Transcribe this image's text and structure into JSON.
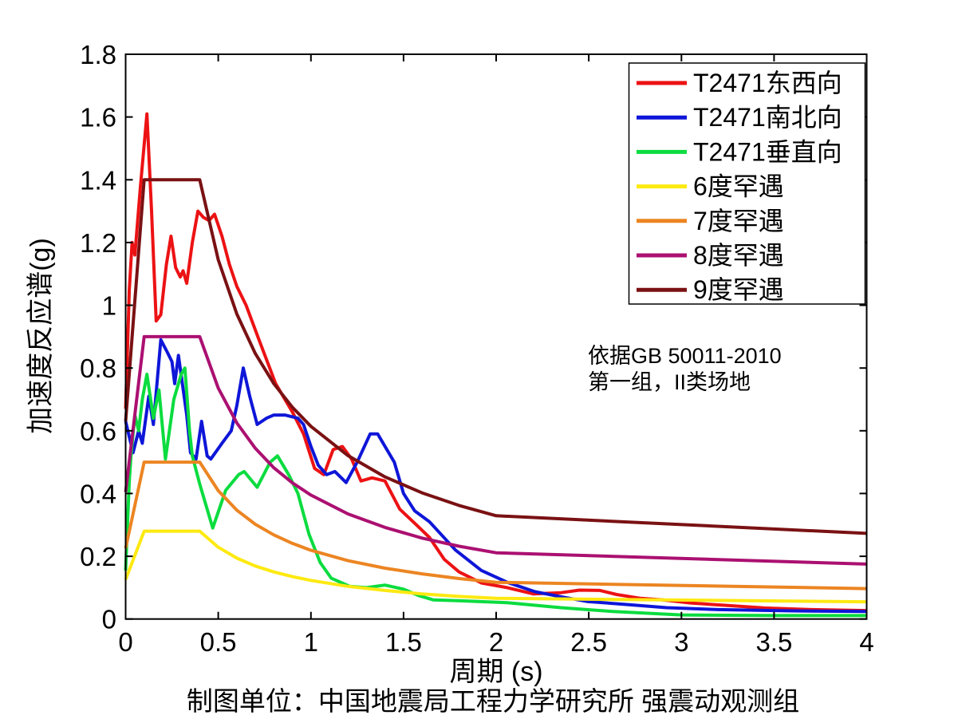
{
  "figure": {
    "background": "#ffffff",
    "caption": "制图单位：中国地震局工程力学研究所 强震动观测组",
    "annotation": {
      "line1": "依据GB 50011-2010",
      "line2": "第一组，II类场地"
    }
  },
  "chart_data": {
    "type": "line",
    "title": "",
    "xlabel": "周期 (s)",
    "ylabel": "加速度反应谱(g)",
    "xlim": [
      0,
      4
    ],
    "ylim": [
      0,
      1.8
    ],
    "grid": false,
    "legend_position": "top-right",
    "xticks": [
      0,
      0.5,
      1,
      1.5,
      2,
      2.5,
      3,
      3.5,
      4
    ],
    "xtick_labels": [
      "0",
      "0.5",
      "1",
      "1.5",
      "2",
      "2.5",
      "3",
      "3.5",
      "4"
    ],
    "yticks": [
      0,
      0.2,
      0.4,
      0.6,
      0.8,
      1,
      1.2,
      1.4,
      1.6,
      1.8
    ],
    "ytick_labels": [
      "0",
      "0.2",
      "0.4",
      "0.6",
      "0.8",
      "1",
      "1.2",
      "1.4",
      "1.6",
      "1.8"
    ],
    "axis_color": "#000000",
    "series": [
      {
        "name": "T2471东西向",
        "color": "#EC1214",
        "points": [
          [
            0,
            0.67
          ],
          [
            0.02,
            1.05
          ],
          [
            0.035,
            1.2
          ],
          [
            0.05,
            1.16
          ],
          [
            0.08,
            1.38
          ],
          [
            0.115,
            1.61
          ],
          [
            0.14,
            1.3
          ],
          [
            0.165,
            0.95
          ],
          [
            0.19,
            0.97
          ],
          [
            0.22,
            1.13
          ],
          [
            0.245,
            1.22
          ],
          [
            0.27,
            1.12
          ],
          [
            0.295,
            1.09
          ],
          [
            0.31,
            1.11
          ],
          [
            0.33,
            1.07
          ],
          [
            0.36,
            1.2
          ],
          [
            0.39,
            1.3
          ],
          [
            0.42,
            1.28
          ],
          [
            0.45,
            1.27
          ],
          [
            0.48,
            1.29
          ],
          [
            0.52,
            1.22
          ],
          [
            0.56,
            1.13
          ],
          [
            0.6,
            1.06
          ],
          [
            0.65,
            1.0
          ],
          [
            0.72,
            0.89
          ],
          [
            0.81,
            0.75
          ],
          [
            0.9,
            0.66
          ],
          [
            0.96,
            0.59
          ],
          [
            1.02,
            0.48
          ],
          [
            1.07,
            0.46
          ],
          [
            1.12,
            0.54
          ],
          [
            1.17,
            0.55
          ],
          [
            1.22,
            0.51
          ],
          [
            1.27,
            0.44
          ],
          [
            1.33,
            0.45
          ],
          [
            1.4,
            0.44
          ],
          [
            1.48,
            0.35
          ],
          [
            1.57,
            0.3
          ],
          [
            1.64,
            0.26
          ],
          [
            1.72,
            0.19
          ],
          [
            1.8,
            0.15
          ],
          [
            1.92,
            0.115
          ],
          [
            2.06,
            0.1
          ],
          [
            2.2,
            0.08
          ],
          [
            2.35,
            0.084
          ],
          [
            2.45,
            0.092
          ],
          [
            2.56,
            0.091
          ],
          [
            2.65,
            0.078
          ],
          [
            2.78,
            0.066
          ],
          [
            2.9,
            0.061
          ],
          [
            3.05,
            0.051
          ],
          [
            3.25,
            0.043
          ],
          [
            3.45,
            0.035
          ],
          [
            3.7,
            0.03
          ],
          [
            4.0,
            0.027
          ]
        ]
      },
      {
        "name": "T2471南北向",
        "color": "#0E16D8",
        "points": [
          [
            0,
            0.63
          ],
          [
            0.04,
            0.53
          ],
          [
            0.07,
            0.6
          ],
          [
            0.09,
            0.56
          ],
          [
            0.125,
            0.71
          ],
          [
            0.15,
            0.62
          ],
          [
            0.19,
            0.89
          ],
          [
            0.225,
            0.85
          ],
          [
            0.25,
            0.82
          ],
          [
            0.265,
            0.75
          ],
          [
            0.285,
            0.84
          ],
          [
            0.33,
            0.65
          ],
          [
            0.35,
            0.53
          ],
          [
            0.38,
            0.51
          ],
          [
            0.41,
            0.63
          ],
          [
            0.44,
            0.52
          ],
          [
            0.46,
            0.51
          ],
          [
            0.52,
            0.56
          ],
          [
            0.57,
            0.6
          ],
          [
            0.6,
            0.68
          ],
          [
            0.635,
            0.8
          ],
          [
            0.67,
            0.71
          ],
          [
            0.71,
            0.62
          ],
          [
            0.76,
            0.64
          ],
          [
            0.8,
            0.65
          ],
          [
            0.86,
            0.65
          ],
          [
            0.93,
            0.64
          ],
          [
            0.96,
            0.62
          ],
          [
            1.0,
            0.55
          ],
          [
            1.04,
            0.49
          ],
          [
            1.085,
            0.46
          ],
          [
            1.13,
            0.47
          ],
          [
            1.19,
            0.435
          ],
          [
            1.25,
            0.5
          ],
          [
            1.32,
            0.59
          ],
          [
            1.36,
            0.59
          ],
          [
            1.41,
            0.54
          ],
          [
            1.45,
            0.5
          ],
          [
            1.5,
            0.4
          ],
          [
            1.56,
            0.345
          ],
          [
            1.64,
            0.31
          ],
          [
            1.78,
            0.22
          ],
          [
            1.92,
            0.155
          ],
          [
            2.06,
            0.117
          ],
          [
            2.21,
            0.087
          ],
          [
            2.35,
            0.071
          ],
          [
            2.49,
            0.056
          ],
          [
            2.71,
            0.046
          ],
          [
            2.92,
            0.036
          ],
          [
            3.2,
            0.03
          ],
          [
            3.6,
            0.026
          ],
          [
            4.0,
            0.024
          ]
        ]
      },
      {
        "name": "T2471垂直向",
        "color": "#0BDC3F",
        "points": [
          [
            0,
            0.155
          ],
          [
            0.01,
            0.3
          ],
          [
            0.02,
            0.44
          ],
          [
            0.03,
            0.53
          ],
          [
            0.05,
            0.65
          ],
          [
            0.07,
            0.6
          ],
          [
            0.09,
            0.7
          ],
          [
            0.115,
            0.78
          ],
          [
            0.15,
            0.64
          ],
          [
            0.18,
            0.73
          ],
          [
            0.215,
            0.51
          ],
          [
            0.26,
            0.7
          ],
          [
            0.3,
            0.78
          ],
          [
            0.32,
            0.8
          ],
          [
            0.345,
            0.6
          ],
          [
            0.36,
            0.52
          ],
          [
            0.4,
            0.43
          ],
          [
            0.47,
            0.29
          ],
          [
            0.54,
            0.41
          ],
          [
            0.61,
            0.46
          ],
          [
            0.64,
            0.47
          ],
          [
            0.71,
            0.42
          ],
          [
            0.78,
            0.5
          ],
          [
            0.82,
            0.52
          ],
          [
            0.88,
            0.46
          ],
          [
            0.93,
            0.4
          ],
          [
            0.99,
            0.27
          ],
          [
            1.05,
            0.18
          ],
          [
            1.11,
            0.13
          ],
          [
            1.21,
            0.104
          ],
          [
            1.3,
            0.1
          ],
          [
            1.4,
            0.108
          ],
          [
            1.5,
            0.095
          ],
          [
            1.58,
            0.075
          ],
          [
            1.66,
            0.061
          ],
          [
            1.81,
            0.058
          ],
          [
            2.06,
            0.052
          ],
          [
            2.35,
            0.036
          ],
          [
            2.63,
            0.024
          ],
          [
            3.0,
            0.013
          ],
          [
            3.5,
            0.011
          ],
          [
            4.0,
            0.011
          ]
        ]
      },
      {
        "name": "6度罕遇",
        "color": "#FEE911",
        "points": [
          [
            0,
            0.126
          ],
          [
            0.1,
            0.28
          ],
          [
            0.4,
            0.28
          ],
          [
            0.5,
            0.229
          ],
          [
            0.6,
            0.194
          ],
          [
            0.7,
            0.169
          ],
          [
            0.8,
            0.15
          ],
          [
            0.9,
            0.135
          ],
          [
            1.0,
            0.123
          ],
          [
            1.2,
            0.104
          ],
          [
            1.4,
            0.091
          ],
          [
            1.6,
            0.08
          ],
          [
            1.8,
            0.072
          ],
          [
            2.0,
            0.066
          ],
          [
            4.0,
            0.055
          ]
        ]
      },
      {
        "name": "7度罕遇",
        "color": "#EC8522",
        "points": [
          [
            0,
            0.225
          ],
          [
            0.1,
            0.5
          ],
          [
            0.4,
            0.5
          ],
          [
            0.5,
            0.409
          ],
          [
            0.6,
            0.347
          ],
          [
            0.7,
            0.302
          ],
          [
            0.8,
            0.268
          ],
          [
            0.9,
            0.241
          ],
          [
            1.0,
            0.219
          ],
          [
            1.2,
            0.186
          ],
          [
            1.4,
            0.162
          ],
          [
            1.6,
            0.144
          ],
          [
            1.8,
            0.129
          ],
          [
            2.0,
            0.117
          ],
          [
            4.0,
            0.097
          ]
        ]
      },
      {
        "name": "8度罕遇",
        "color": "#AB1071",
        "points": [
          [
            0,
            0.405
          ],
          [
            0.1,
            0.9
          ],
          [
            0.4,
            0.9
          ],
          [
            0.5,
            0.736
          ],
          [
            0.6,
            0.625
          ],
          [
            0.7,
            0.544
          ],
          [
            0.8,
            0.482
          ],
          [
            0.9,
            0.434
          ],
          [
            1.0,
            0.395
          ],
          [
            1.2,
            0.335
          ],
          [
            1.4,
            0.292
          ],
          [
            1.6,
            0.258
          ],
          [
            1.8,
            0.232
          ],
          [
            2.0,
            0.211
          ],
          [
            4.0,
            0.175
          ]
        ]
      },
      {
        "name": "9度罕遇",
        "color": "#7A1113",
        "points": [
          [
            0,
            0.63
          ],
          [
            0.1,
            1.4
          ],
          [
            0.4,
            1.4
          ],
          [
            0.5,
            1.145
          ],
          [
            0.6,
            0.972
          ],
          [
            0.7,
            0.846
          ],
          [
            0.8,
            0.75
          ],
          [
            0.9,
            0.675
          ],
          [
            1.0,
            0.614
          ],
          [
            1.2,
            0.521
          ],
          [
            1.4,
            0.453
          ],
          [
            1.6,
            0.402
          ],
          [
            1.8,
            0.362
          ],
          [
            2.0,
            0.329
          ],
          [
            4.0,
            0.273
          ]
        ]
      }
    ]
  }
}
